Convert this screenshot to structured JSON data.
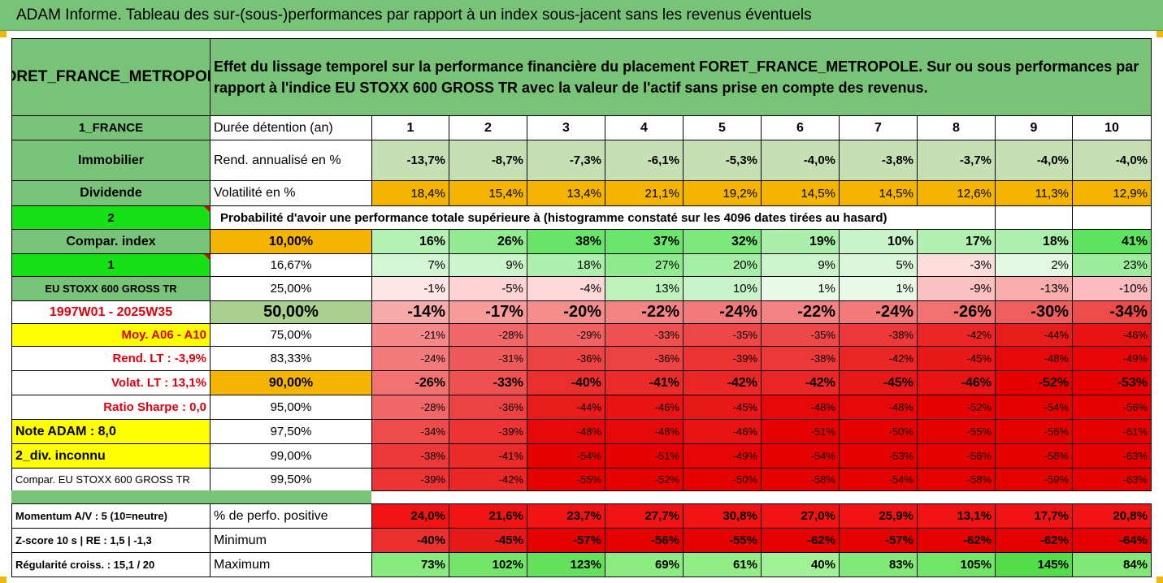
{
  "title": "ADAM Informe. Tableau des sur-(sous-)performances par rapport à un index sous-jacent sans les revenus éventuels",
  "colors": {
    "header_green": "#79c379",
    "gold": "#f5b400",
    "bright_green": "#16e016",
    "yellow": "#ffff00",
    "red_text": "#e0000d"
  },
  "asset": {
    "name": "FORET_FRANCE_METROPOLE",
    "description": "Effet du lissage temporel sur la performance financière du placement FORET_FRANCE_METROPOLE. Sur ou sous performances par rapport à l'indice EU STOXX 600 GROSS TR avec la valeur de l'actif sans prise en compte des revenus."
  },
  "side_labels": [
    "1_FRANCE",
    "Immobilier",
    "Dividende",
    "2",
    "Compar. index",
    "1",
    "EU STOXX 600 GROSS TR",
    "1997W01 - 2025W35",
    "Moy. A06 - A10",
    "Rend. LT :   -3,9%",
    "Volat. LT :   13,1%",
    "Ratio Sharpe :    0,0",
    "Note ADAM : 8,0",
    "2_div. inconnu",
    "Compar. EU STOXX 600 GROSS TR"
  ],
  "header_row": {
    "label": "Durée détention (an)",
    "years": [
      "1",
      "2",
      "3",
      "4",
      "5",
      "6",
      "7",
      "8",
      "9",
      "10"
    ]
  },
  "rendement": {
    "label": "Rend. annualisé en %",
    "values": [
      "-13,7%",
      "-8,7%",
      "-7,3%",
      "-6,1%",
      "-5,3%",
      "-4,0%",
      "-3,8%",
      "-3,7%",
      "-4,0%",
      "-4,0%"
    ]
  },
  "volatilite": {
    "label": "Volatilité en %",
    "values": [
      "18,4%",
      "15,4%",
      "13,4%",
      "21,1%",
      "19,2%",
      "14,5%",
      "14,5%",
      "12,6%",
      "11,3%",
      "12,9%"
    ]
  },
  "proba_text": "Probabilité d'avoir une performance totale supérieure à (histogramme constaté sur les 4096 dates tirées au hasard)",
  "quantiles": [
    {
      "label": "10,00%",
      "values": [
        "16%",
        "26%",
        "38%",
        "37%",
        "32%",
        "19%",
        "10%",
        "17%",
        "18%",
        "41%"
      ]
    },
    {
      "label": "16,67%",
      "values": [
        "7%",
        "9%",
        "18%",
        "27%",
        "20%",
        "9%",
        "5%",
        "-3%",
        "2%",
        "23%"
      ]
    },
    {
      "label": "25,00%",
      "values": [
        "-1%",
        "-5%",
        "-4%",
        "13%",
        "10%",
        "1%",
        "1%",
        "-9%",
        "-13%",
        "-10%"
      ]
    },
    {
      "label": "50,00%",
      "values": [
        "-14%",
        "-17%",
        "-20%",
        "-22%",
        "-24%",
        "-22%",
        "-24%",
        "-26%",
        "-30%",
        "-34%"
      ]
    },
    {
      "label": "75,00%",
      "values": [
        "-21%",
        "-28%",
        "-29%",
        "-33%",
        "-35%",
        "-35%",
        "-38%",
        "-42%",
        "-44%",
        "-46%"
      ]
    },
    {
      "label": "83,33%",
      "values": [
        "-24%",
        "-31%",
        "-36%",
        "-36%",
        "-39%",
        "-38%",
        "-42%",
        "-45%",
        "-48%",
        "-49%"
      ]
    },
    {
      "label": "90,00%",
      "values": [
        "-26%",
        "-33%",
        "-40%",
        "-41%",
        "-42%",
        "-42%",
        "-45%",
        "-46%",
        "-52%",
        "-53%"
      ]
    },
    {
      "label": "95,00%",
      "values": [
        "-28%",
        "-36%",
        "-44%",
        "-46%",
        "-45%",
        "-48%",
        "-48%",
        "-52%",
        "-54%",
        "-56%"
      ]
    },
    {
      "label": "97,50%",
      "values": [
        "-34%",
        "-39%",
        "-48%",
        "-48%",
        "-46%",
        "-51%",
        "-50%",
        "-55%",
        "-56%",
        "-61%"
      ]
    },
    {
      "label": "99,00%",
      "values": [
        "-38%",
        "-41%",
        "-54%",
        "-51%",
        "-49%",
        "-54%",
        "-53%",
        "-56%",
        "-58%",
        "-63%"
      ]
    },
    {
      "label": "99,50%",
      "values": [
        "-39%",
        "-42%",
        "-55%",
        "-52%",
        "-50%",
        "-58%",
        "-54%",
        "-58%",
        "-59%",
        "-63%"
      ]
    }
  ],
  "bottom": [
    {
      "side": "Momentum A/V : 5 (10=neutre)",
      "label": "% de perfo. positive",
      "values": [
        "24,0%",
        "21,6%",
        "23,7%",
        "27,7%",
        "30,8%",
        "27,0%",
        "25,9%",
        "13,1%",
        "17,7%",
        "20,8%"
      ]
    },
    {
      "side": "Z-score 10 s  |  RE : 1,5  |  -1,3",
      "label": "Minimum",
      "values": [
        "-40%",
        "-45%",
        "-57%",
        "-56%",
        "-55%",
        "-62%",
        "-57%",
        "-62%",
        "-62%",
        "-64%"
      ]
    },
    {
      "side": "Régularité croiss. : 15,1 / 20",
      "label": "Maximum",
      "values": [
        "73%",
        "102%",
        "123%",
        "69%",
        "61%",
        "40%",
        "83%",
        "105%",
        "145%",
        "84%"
      ]
    }
  ]
}
